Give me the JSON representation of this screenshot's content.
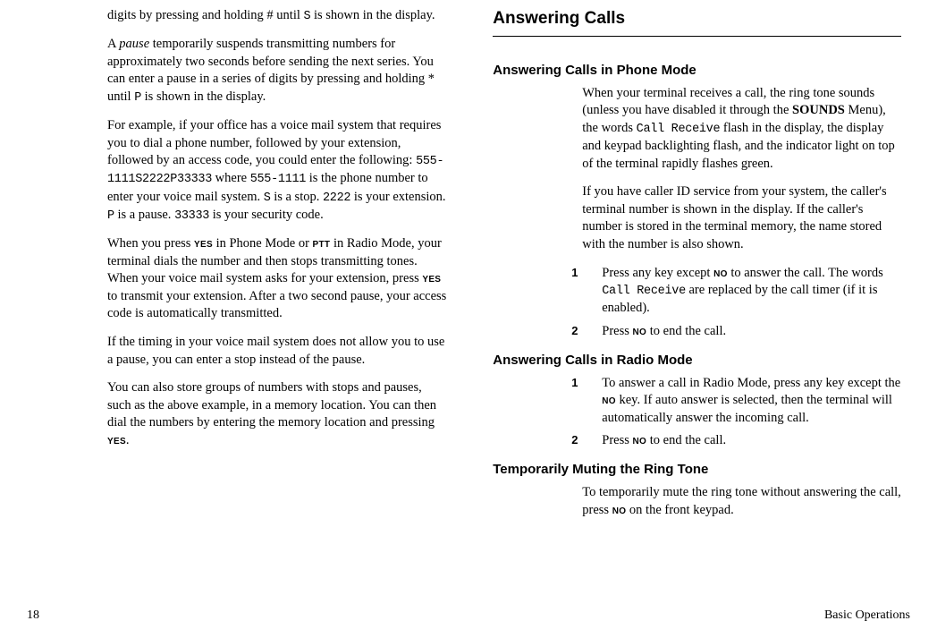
{
  "footer": {
    "page_number": "18",
    "chapter_title": "Basic Operations"
  },
  "left": {
    "p1a": "digits by pressing and holding # until ",
    "p1b": "S",
    "p1c": " is shown in the display.",
    "p2a": "A ",
    "p2term": "pause",
    "p2b": " temporarily suspends transmitting numbers for approximately two seconds before sending the next series.  You can enter a pause in a series of digits by pressing and holding * until ",
    "p2mono": "P",
    "p2c": " is shown in the display.",
    "p3a": "For example, if your office has a voice mail system that requires you to dial a phone number, followed by your extension, followed by an access code, you could enter the following:  ",
    "p3mono1": "555-1111S2222P33333",
    "p3b": " where ",
    "p3mono2": "555-1111",
    "p3c": " is the phone number to enter your voice mail system.  ",
    "p3mono3": "S",
    "p3d": " is a stop.  ",
    "p3mono4": "2222",
    "p3e": " is your extension. ",
    "p3mono5": "P",
    "p3f": " is a pause.  ",
    "p3mono6": "33333",
    "p3g": " is your security code.",
    "p4a": "When you press ",
    "p4key1": "YES",
    "p4b": " in Phone Mode or ",
    "p4key2": "PTT",
    "p4c": " in Radio Mode, your terminal dials the number and then stops transmitting tones.  When your voice mail system asks for your extension, press ",
    "p4key3": "YES",
    "p4d": " to transmit your extension.  After a two second pause, your access code is automatically transmitted.",
    "p5": "If the timing in your voice mail system does not allow you to use a pause, you can enter a stop instead of the pause.",
    "p6a": "You can also store groups of numbers with stops and pauses, such as the above example, in a memory location.  You can then dial the numbers by entering the memory location and pressing ",
    "p6key": "YES",
    "p6b": "."
  },
  "right": {
    "h1": "Answering Calls",
    "h2_phone": "Answering Calls in Phone Mode",
    "phone_p1a": "When your terminal receives a call, the ring tone sounds (unless you have disabled it through the ",
    "phone_p1menu": "SOUNDS",
    "phone_p1b": " Menu), the words ",
    "phone_p1mono": "Call Receive",
    "phone_p1c": " flash in the display, the display and keypad backlighting flash, and the indicator light on top of the terminal rapidly flashes green.",
    "phone_p2": "If you have caller ID service from your system, the caller's terminal number is shown in the display.  If the caller's number is stored in the terminal memory, the name stored with the number is also shown.",
    "phone_step1_num": "1",
    "phone_step1a": "Press any key except ",
    "phone_step1key": "NO",
    "phone_step1b": " to answer the call. The words ",
    "phone_step1mono": "Call Receive",
    "phone_step1c": " are replaced by the call timer (if it is enabled).",
    "phone_step2_num": "2",
    "phone_step2a": "Press ",
    "phone_step2key": "NO",
    "phone_step2b": " to end the call.",
    "h2_radio": "Answering Calls in Radio Mode",
    "radio_step1_num": "1",
    "radio_step1a": "To answer a call in Radio Mode, press any key except the ",
    "radio_step1key": "NO",
    "radio_step1b": " key. If auto answer is selected, then the terminal will automatically answer the incoming call.",
    "radio_step2_num": "2",
    "radio_step2a": "Press ",
    "radio_step2key": "NO",
    "radio_step2b": " to end the call.",
    "h2_mute": "Temporarily Muting the Ring Tone",
    "mute_p1a": "To temporarily mute the ring tone without answering the call, press ",
    "mute_p1key": "NO",
    "mute_p1b": " on the front keypad."
  }
}
